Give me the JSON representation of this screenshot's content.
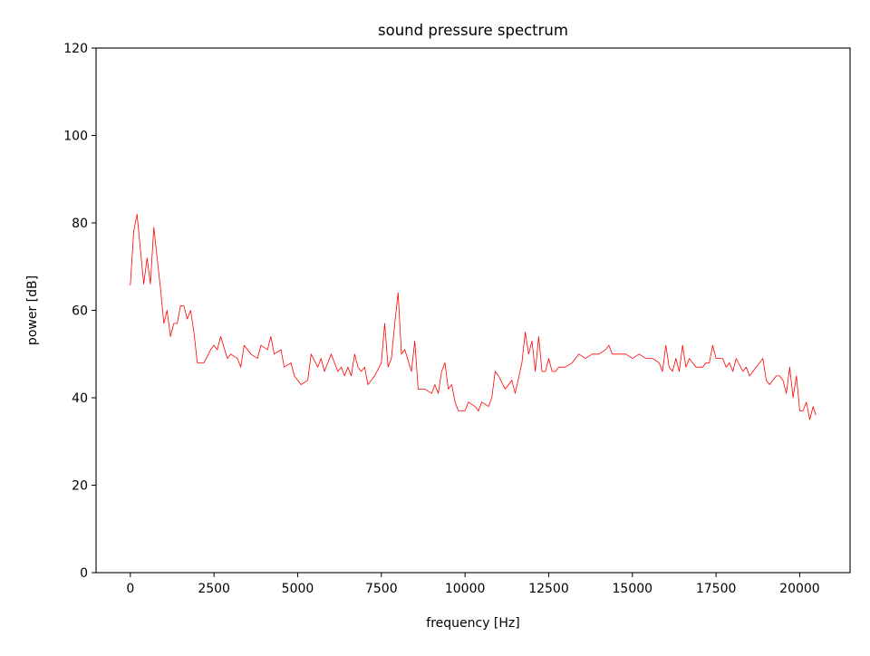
{
  "chart_data": {
    "type": "line",
    "title": "sound pressure spectrum",
    "xlabel": "frequency [Hz]",
    "ylabel": "power [dB]",
    "xlim": [
      -1024,
      21504
    ],
    "ylim": [
      0,
      120
    ],
    "xticks": [
      0,
      2500,
      5000,
      7500,
      10000,
      12500,
      15000,
      17500,
      20000
    ],
    "yticks": [
      0,
      20,
      40,
      60,
      80,
      100,
      120
    ],
    "grid": false,
    "line_color": "#ff0000",
    "series": [
      {
        "x": [
          0,
          100,
          200,
          300,
          400,
          500,
          600,
          700,
          800,
          900,
          1000,
          1100,
          1200,
          1300,
          1400,
          1500,
          1600,
          1700,
          1800,
          1900,
          2000,
          2200,
          2400,
          2500,
          2600,
          2700,
          2900,
          3000,
          3200,
          3300,
          3400,
          3600,
          3800,
          3900,
          4100,
          4200,
          4300,
          4500,
          4600,
          4800,
          4900,
          5100,
          5300,
          5400,
          5600,
          5700,
          5800,
          5900,
          6000,
          6200,
          6300,
          6400,
          6500,
          6600,
          6700,
          6800,
          6900,
          7000,
          7100,
          7300,
          7500,
          7600,
          7700,
          7800,
          7900,
          8000,
          8100,
          8200,
          8400,
          8500,
          8600,
          8800,
          9000,
          9100,
          9200,
          9300,
          9400,
          9500,
          9600,
          9700,
          9800,
          10000,
          10100,
          10300,
          10400,
          10500,
          10700,
          10800,
          10900,
          11000,
          11200,
          11400,
          11500,
          11700,
          11800,
          11900,
          12000,
          12100,
          12200,
          12300,
          12400,
          12500,
          12600,
          12700,
          12800,
          13000,
          13200,
          13300,
          13400,
          13600,
          13800,
          14000,
          14200,
          14300,
          14400,
          14600,
          14800,
          15000,
          15200,
          15400,
          15600,
          15800,
          15900,
          16000,
          16100,
          16200,
          16300,
          16400,
          16500,
          16600,
          16700,
          16900,
          17100,
          17200,
          17300,
          17400,
          17500,
          17700,
          17800,
          17900,
          18000,
          18100,
          18300,
          18400,
          18500,
          18700,
          18900,
          19000,
          19100,
          19300,
          19400,
          19500,
          19600,
          19700,
          19800,
          19900,
          20000,
          20100,
          20200,
          20300,
          20400,
          20480
        ],
        "y": [
          65.7,
          78,
          82,
          74,
          66,
          72,
          66,
          79,
          72,
          65,
          57,
          60,
          54,
          57,
          57,
          61,
          61,
          58,
          60,
          55,
          48,
          48,
          51,
          52,
          51,
          54,
          49,
          50,
          49,
          47,
          52,
          50,
          49,
          52,
          51,
          54,
          50,
          51,
          47,
          48,
          45,
          43,
          44,
          50,
          47,
          49,
          46,
          48,
          50,
          46,
          47,
          45,
          47,
          45,
          50,
          47,
          46,
          47,
          43,
          45,
          48,
          57,
          47,
          49,
          57,
          64,
          50,
          51,
          46,
          53,
          42,
          42,
          41,
          43,
          41,
          46,
          48,
          42,
          43,
          39,
          37,
          37,
          39,
          38,
          37,
          39,
          38,
          40,
          46,
          45,
          42,
          44,
          41,
          48,
          55,
          50,
          53,
          46,
          54,
          46,
          46,
          49,
          46,
          46,
          47,
          47,
          48,
          49,
          50,
          49,
          50,
          50,
          51,
          52,
          50,
          50,
          50,
          49,
          50,
          49,
          49,
          48,
          46,
          52,
          47,
          46,
          49,
          46,
          52,
          47,
          49,
          47,
          47,
          48,
          48,
          52,
          49,
          49,
          47,
          48,
          46,
          49,
          46,
          47,
          45,
          47,
          49,
          44,
          43,
          45,
          45,
          44,
          41,
          47,
          40,
          45,
          37,
          37,
          39,
          35,
          38,
          36
        ]
      }
    ]
  }
}
